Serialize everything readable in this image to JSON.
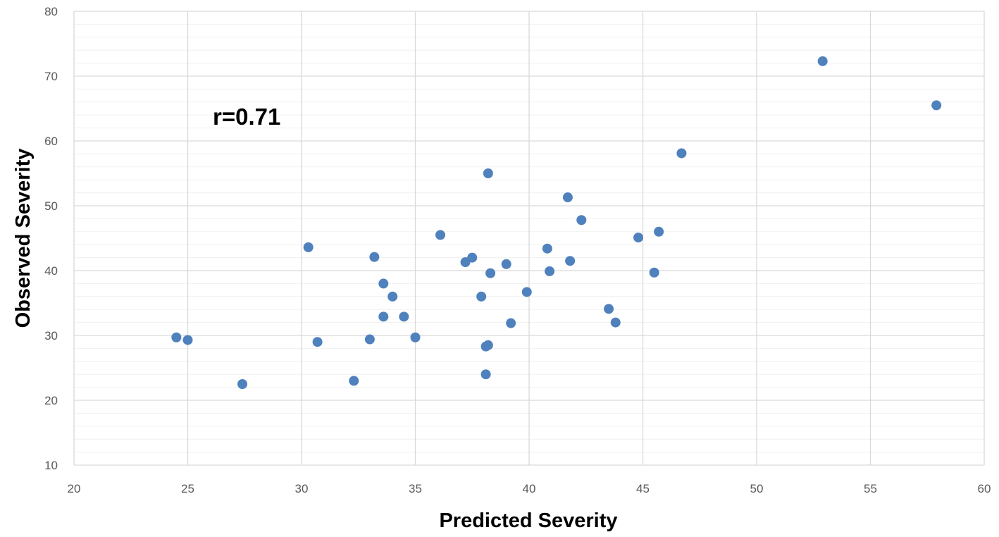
{
  "chart_data": {
    "type": "scatter",
    "title": "",
    "xlabel": "Predicted Severity",
    "ylabel": "Observed Severity",
    "xlim": [
      20,
      60
    ],
    "ylim": [
      10,
      80
    ],
    "x_ticks": [
      20,
      25,
      30,
      35,
      40,
      45,
      50,
      55,
      60
    ],
    "y_ticks": [
      10,
      20,
      30,
      40,
      50,
      60,
      70,
      80
    ],
    "grid": true,
    "minor_grid": true,
    "legend": "none",
    "annotation": "r=0.71",
    "colors": {
      "marker": "#4f81bd",
      "major_grid": "#d9d9d9",
      "minor_grid": "#f0f0f0"
    },
    "series": [
      {
        "points": [
          [
            24.5,
            29.7
          ],
          [
            25.0,
            29.3
          ],
          [
            27.4,
            22.5
          ],
          [
            30.3,
            43.6
          ],
          [
            30.7,
            29.0
          ],
          [
            32.3,
            23.0
          ],
          [
            33.0,
            29.4
          ],
          [
            33.2,
            42.1
          ],
          [
            33.6,
            38.0
          ],
          [
            33.6,
            32.9
          ],
          [
            34.0,
            36.0
          ],
          [
            34.5,
            32.9
          ],
          [
            35.0,
            29.7
          ],
          [
            36.1,
            45.5
          ],
          [
            37.2,
            41.3
          ],
          [
            37.5,
            42.0
          ],
          [
            37.9,
            36.0
          ],
          [
            38.1,
            28.3
          ],
          [
            38.1,
            24.0
          ],
          [
            38.2,
            28.5
          ],
          [
            38.2,
            55.0
          ],
          [
            38.3,
            39.6
          ],
          [
            39.0,
            41.0
          ],
          [
            39.2,
            31.9
          ],
          [
            39.9,
            36.7
          ],
          [
            40.8,
            43.4
          ],
          [
            40.9,
            39.9
          ],
          [
            41.7,
            51.3
          ],
          [
            41.8,
            41.5
          ],
          [
            42.3,
            47.8
          ],
          [
            43.5,
            34.1
          ],
          [
            43.8,
            32.0
          ],
          [
            44.8,
            45.1
          ],
          [
            45.5,
            39.7
          ],
          [
            45.7,
            46.0
          ],
          [
            46.7,
            58.1
          ],
          [
            52.9,
            72.3
          ],
          [
            57.9,
            65.5
          ]
        ]
      }
    ]
  }
}
